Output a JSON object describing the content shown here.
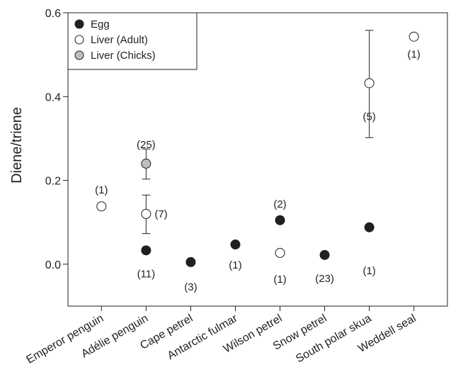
{
  "chart_data": {
    "type": "scatter",
    "ylabel": "Diene/triene",
    "ylim": [
      -0.1,
      0.6
    ],
    "yticks": [
      0.0,
      0.2,
      0.4,
      0.6
    ],
    "ytick_labels": [
      "0.0",
      "0.2",
      "0.4",
      "0.6"
    ],
    "categories": [
      "Emperor penguin",
      "Adélie penguin",
      "Cape petrel",
      "Antarctic fulmar",
      "Wilson petrel",
      "Snow petrel",
      "South polar skua",
      "Weddell seal"
    ],
    "grid": false,
    "legend_position": "top-left",
    "series": [
      {
        "name": "Egg",
        "color": "#231f20",
        "fill": "#231f20",
        "points": [
          {
            "category": "Adélie penguin",
            "y": 0.033,
            "n": "(11)"
          },
          {
            "category": "Cape petrel",
            "y": 0.005,
            "n": "(3)"
          },
          {
            "category": "Antarctic fulmar",
            "y": 0.047,
            "n": "(1)"
          },
          {
            "category": "Wilson petrel",
            "y": 0.105,
            "n": "(2)"
          },
          {
            "category": "Snow petrel",
            "y": 0.022,
            "n": "(23)"
          },
          {
            "category": "South polar skua",
            "y": 0.088,
            "n": "(1)"
          }
        ]
      },
      {
        "name": "Liver (Adult)",
        "color": "#231f20",
        "fill": "#ffffff",
        "points": [
          {
            "category": "Emperor penguin",
            "y": 0.138,
            "n": "(1)"
          },
          {
            "category": "Adélie penguin",
            "y": 0.12,
            "err_low": 0.073,
            "err_high": 0.165,
            "n": "(7)"
          },
          {
            "category": "Wilson petrel",
            "y": 0.027,
            "n": "(1)"
          },
          {
            "category": "South polar skua",
            "y": 0.432,
            "err_low": 0.302,
            "err_high": 0.558,
            "n": "(5)"
          },
          {
            "category": "Weddell seal",
            "y": 0.543,
            "n": "(1)"
          }
        ]
      },
      {
        "name": "Liver (Chicks)",
        "color": "#231f20",
        "fill": "#bcbec0",
        "points": [
          {
            "category": "Adélie penguin",
            "y": 0.24,
            "err_low": 0.203,
            "err_high": 0.275,
            "n": "(25)"
          }
        ]
      }
    ]
  }
}
